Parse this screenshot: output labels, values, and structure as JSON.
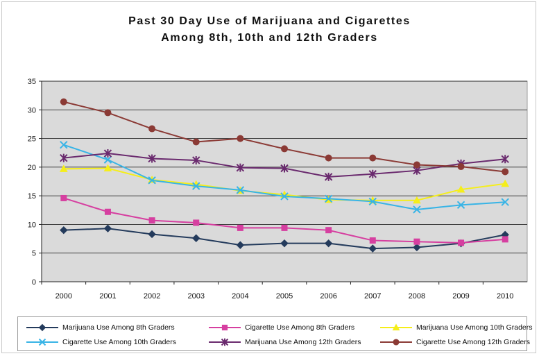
{
  "chart_data": {
    "type": "line",
    "title_line1": "Past 30 Day Use of Marijuana and Cigarettes",
    "title_line2": "Among 8th, 10th and 12th Graders",
    "xlabel": "",
    "ylabel": "",
    "ylim": [
      0,
      35
    ],
    "yticks": [
      "0",
      "5",
      "10",
      "15",
      "20",
      "25",
      "30",
      "35"
    ],
    "grid": true,
    "legend_position": "bottom",
    "categories": [
      "2000",
      "2001",
      "2002",
      "2003",
      "2004",
      "2005",
      "2006",
      "2007",
      "2008",
      "2009",
      "2010"
    ],
    "series": [
      {
        "name": "Marijuana Use Among 8th Graders",
        "color": "#243b5c",
        "marker": "diamond",
        "values": [
          9.0,
          9.3,
          8.3,
          7.6,
          6.4,
          6.7,
          6.7,
          5.8,
          6.0,
          6.7,
          8.2
        ]
      },
      {
        "name": "Cigarette Use Among 8th Graders",
        "color": "#d63fa0",
        "marker": "square",
        "values": [
          14.6,
          12.2,
          10.7,
          10.3,
          9.4,
          9.4,
          9.0,
          7.2,
          7.0,
          6.8,
          7.4
        ]
      },
      {
        "name": "Marijuana Use Among 10th Graders",
        "color": "#f5ee1a",
        "marker": "triangle",
        "values": [
          19.7,
          19.8,
          17.8,
          17.0,
          15.9,
          15.2,
          14.3,
          14.2,
          14.2,
          16.1,
          17.1
        ]
      },
      {
        "name": "Cigarette Use Among 10th Graders",
        "color": "#38b4e6",
        "marker": "x",
        "values": [
          23.9,
          21.3,
          17.7,
          16.7,
          16.0,
          14.9,
          14.5,
          14.0,
          12.6,
          13.4,
          13.9
        ]
      },
      {
        "name": "Marijuana Use Among 12th Graders",
        "color": "#6a2a6e",
        "marker": "star",
        "values": [
          21.6,
          22.4,
          21.5,
          21.2,
          19.9,
          19.8,
          18.3,
          18.8,
          19.4,
          20.6,
          21.4
        ]
      },
      {
        "name": "Cigarette Use Among 12th Graders",
        "color": "#8b3a35",
        "marker": "circle",
        "values": [
          31.4,
          29.5,
          26.7,
          24.4,
          25.0,
          23.2,
          21.6,
          21.6,
          20.4,
          20.1,
          19.2
        ]
      }
    ]
  }
}
